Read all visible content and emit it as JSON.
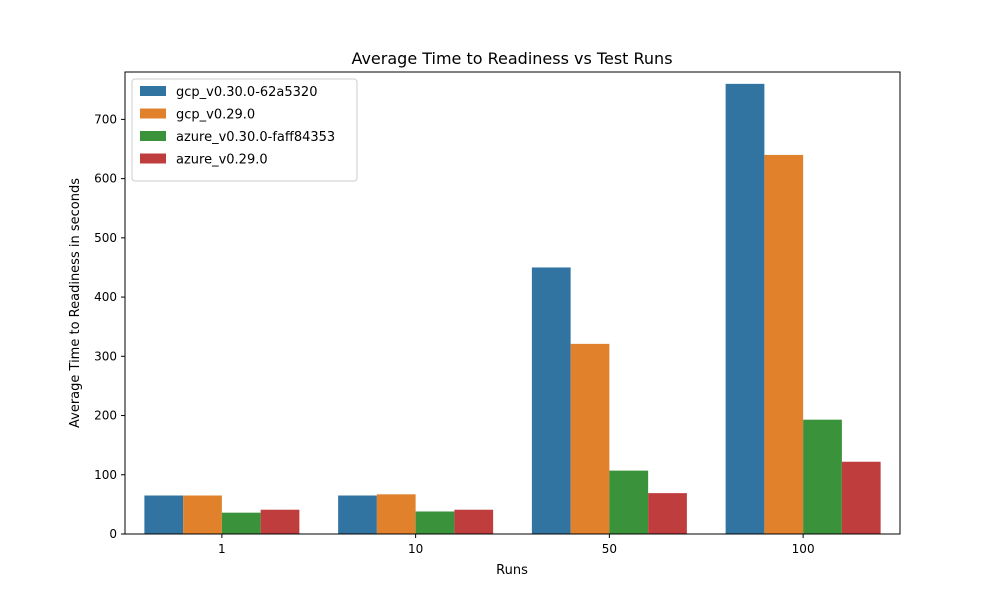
{
  "chart_data": {
    "type": "bar",
    "title": "Average Time to Readiness vs Test Runs",
    "xlabel": "Runs",
    "ylabel": "Average Time to Readiness in seconds",
    "categories": [
      "1",
      "10",
      "50",
      "100"
    ],
    "ylim": [
      0,
      780
    ],
    "yticks": [
      0,
      100,
      200,
      300,
      400,
      500,
      600,
      700
    ],
    "legend_position": "top-left",
    "grid": false,
    "series": [
      {
        "name": "gcp_v0.30.0-62a5320",
        "color": "#3274a1",
        "values": [
          65,
          65,
          450,
          760
        ]
      },
      {
        "name": "gcp_v0.29.0",
        "color": "#e1812c",
        "values": [
          65,
          67,
          321,
          640
        ]
      },
      {
        "name": "azure_v0.30.0-faff84353",
        "color": "#3a923a",
        "values": [
          36,
          38,
          107,
          193
        ]
      },
      {
        "name": "azure_v0.29.0",
        "color": "#c03d3e",
        "values": [
          41,
          41,
          69,
          122
        ]
      }
    ]
  }
}
